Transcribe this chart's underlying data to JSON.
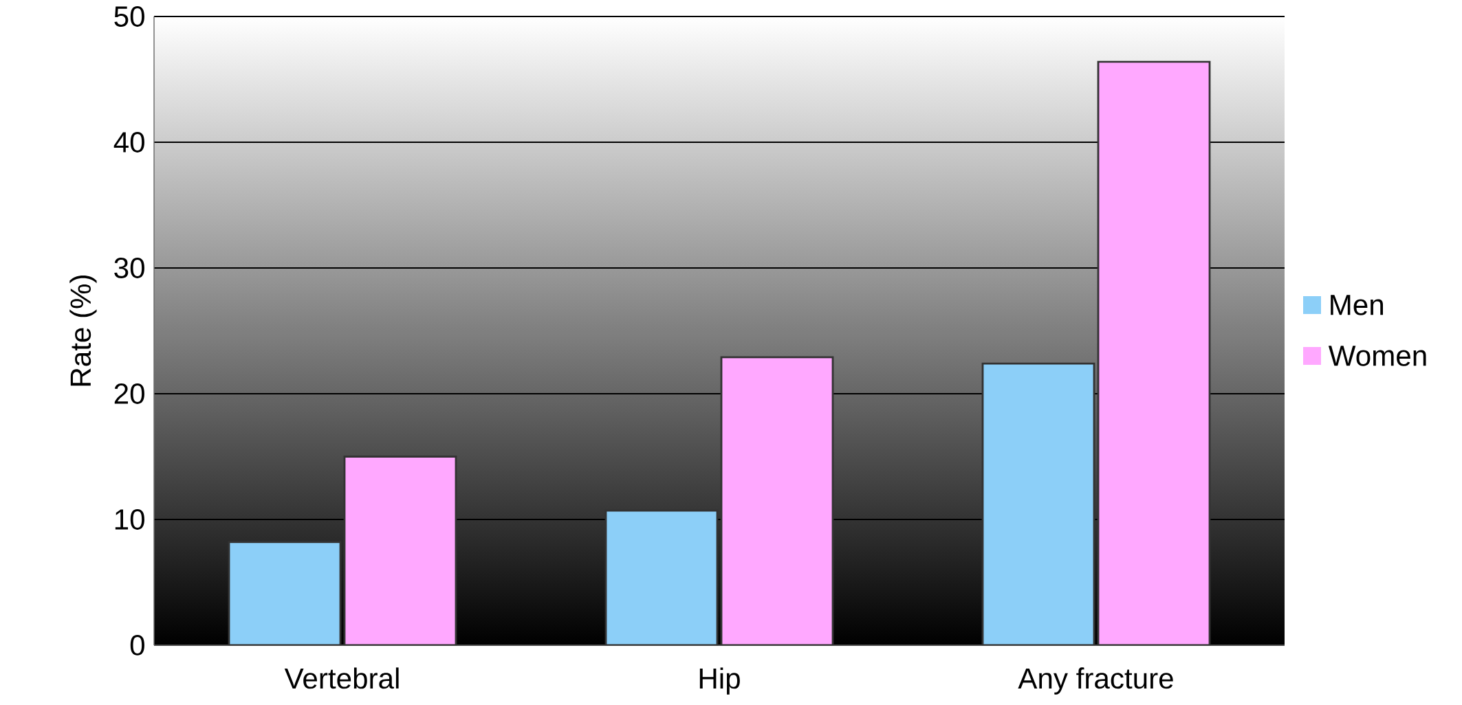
{
  "chart_data": {
    "type": "bar",
    "ylabel": "Rate (%)",
    "categories": [
      "Vertebral",
      "Hip",
      "Any fracture"
    ],
    "series": [
      {
        "name": "Men",
        "color": "#8ccff8",
        "values": [
          8.2,
          10.7,
          22.4
        ]
      },
      {
        "name": "Women",
        "color": "#ffa8ff",
        "values": [
          15.0,
          22.9,
          46.4
        ]
      }
    ],
    "ylim": [
      0,
      50
    ],
    "yticks": [
      0,
      10,
      20,
      30,
      40,
      50
    ],
    "grid": "y",
    "legend": "right"
  }
}
